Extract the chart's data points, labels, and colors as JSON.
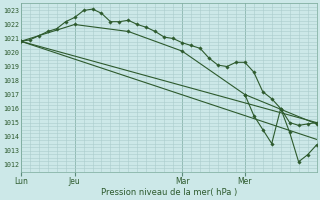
{
  "background_color": "#cce8e8",
  "grid_color": "#aacccc",
  "line_color": "#2d5a2d",
  "marker_color": "#2d5a2d",
  "title": "Pression niveau de la mer( hPa )",
  "xlabel_ticks": [
    "Lun",
    "Jeu",
    "Mar",
    "Mer"
  ],
  "xlabel_tick_positions": [
    0,
    24,
    72,
    100
  ],
  "ylim": [
    1011.5,
    1023.5
  ],
  "yticks": [
    1012,
    1013,
    1014,
    1015,
    1016,
    1017,
    1018,
    1019,
    1020,
    1021,
    1022,
    1023
  ],
  "xlim": [
    0,
    132
  ],
  "vline_x": [
    0,
    24,
    72,
    100
  ],
  "series1_x": [
    0,
    4,
    8,
    12,
    16,
    20,
    24,
    28,
    32,
    36,
    40,
    44,
    48,
    52,
    56,
    60,
    64,
    68,
    72,
    76,
    80,
    84,
    88,
    92,
    96,
    100,
    104,
    108,
    112,
    116,
    120,
    124,
    128,
    132
  ],
  "series1_y": [
    1020.8,
    1020.9,
    1021.2,
    1021.5,
    1021.7,
    1022.2,
    1022.5,
    1023.0,
    1023.1,
    1022.8,
    1022.2,
    1022.2,
    1022.3,
    1022.0,
    1021.8,
    1021.5,
    1021.1,
    1021.0,
    1020.7,
    1020.5,
    1020.3,
    1019.6,
    1019.1,
    1019.0,
    1019.3,
    1019.3,
    1018.6,
    1017.2,
    1016.7,
    1016.0,
    1015.0,
    1014.8,
    1014.9,
    1015.0
  ],
  "series2_x": [
    0,
    24,
    48,
    72,
    100,
    132
  ],
  "series2_y": [
    1020.8,
    1022.0,
    1021.5,
    1020.1,
    1017.0,
    1014.9
  ],
  "series3_x": [
    0,
    132
  ],
  "series3_y": [
    1020.8,
    1013.8
  ],
  "series4_x": [
    0,
    132
  ],
  "series4_y": [
    1020.8,
    1015.0
  ],
  "series5_x": [
    100,
    104,
    108,
    112,
    116,
    120,
    124,
    128,
    132
  ],
  "series5_y": [
    1017.0,
    1015.5,
    1014.5,
    1013.5,
    1016.0,
    1014.3,
    1012.2,
    1012.7,
    1013.4
  ]
}
